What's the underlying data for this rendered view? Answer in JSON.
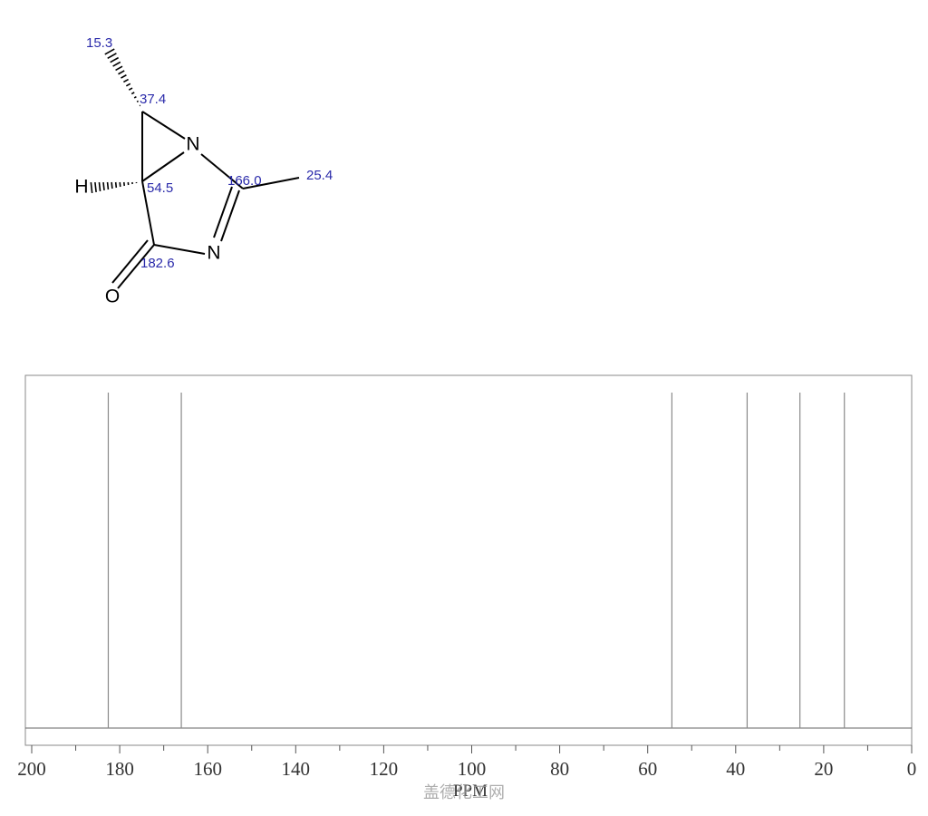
{
  "structure": {
    "atoms": [
      "N",
      "N",
      "H",
      "O"
    ],
    "shift_labels": [
      "15.3",
      "37.4",
      "54.5",
      "166.0",
      "25.4",
      "182.6"
    ]
  },
  "chart_data": {
    "type": "stick",
    "x": [
      182.6,
      166.0,
      54.5,
      37.4,
      25.4,
      15.3
    ],
    "color": "#8a8a8a",
    "xlim": [
      200,
      0
    ],
    "xticks": [
      200,
      180,
      160,
      140,
      120,
      100,
      80,
      60,
      40,
      20,
      0
    ],
    "xminorticks": [
      190,
      170,
      150,
      130,
      110,
      90,
      70,
      50,
      30,
      10
    ],
    "xlabel": "PPM"
  },
  "watermark": "盖德化工网"
}
